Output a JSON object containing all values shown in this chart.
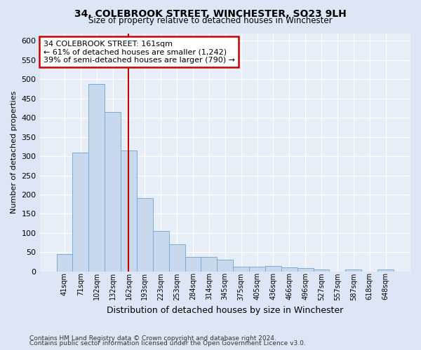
{
  "title": "34, COLEBROOK STREET, WINCHESTER, SO23 9LH",
  "subtitle": "Size of property relative to detached houses in Winchester",
  "xlabel": "Distribution of detached houses by size in Winchester",
  "ylabel": "Number of detached properties",
  "bar_color": "#c9d9ed",
  "bar_edge_color": "#7aadd4",
  "background_color": "#e8eef8",
  "grid_color": "#ffffff",
  "categories": [
    "41sqm",
    "71sqm",
    "102sqm",
    "132sqm",
    "162sqm",
    "193sqm",
    "223sqm",
    "253sqm",
    "284sqm",
    "314sqm",
    "345sqm",
    "375sqm",
    "405sqm",
    "436sqm",
    "466sqm",
    "496sqm",
    "527sqm",
    "557sqm",
    "587sqm",
    "618sqm",
    "648sqm"
  ],
  "values": [
    46,
    310,
    487,
    415,
    315,
    190,
    105,
    70,
    38,
    38,
    30,
    12,
    12,
    15,
    10,
    8,
    5,
    0,
    5,
    0,
    5
  ],
  "ylim": [
    0,
    620
  ],
  "yticks": [
    0,
    50,
    100,
    150,
    200,
    250,
    300,
    350,
    400,
    450,
    500,
    550,
    600
  ],
  "annotation_text": "34 COLEBROOK STREET: 161sqm\n← 61% of detached houses are smaller (1,242)\n39% of semi-detached houses are larger (790) →",
  "annotation_box_color": "#ffffff",
  "annotation_box_edge": "#cc0000",
  "property_line_color": "#cc0000",
  "footnote1": "Contains HM Land Registry data © Crown copyright and database right 2024.",
  "footnote2": "Contains public sector information licensed under the Open Government Licence v3.0."
}
